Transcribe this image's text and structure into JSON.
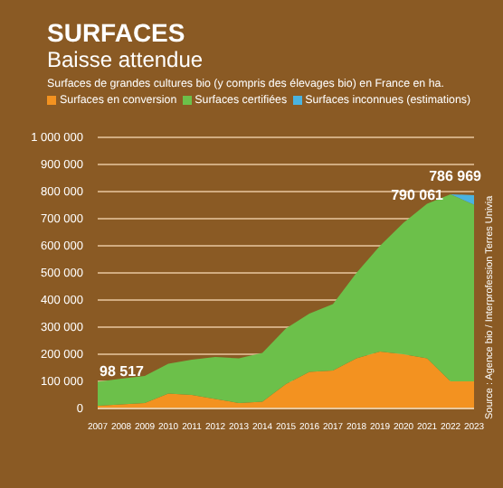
{
  "chart_data": {
    "type": "area",
    "title": "SURFACES",
    "subtitle": "Baisse attendue",
    "annotations": [
      "Surfaces de grandes cultures bio (y compris des élevages bio) en France en ha.",
      {
        "text": "98 517",
        "x": "2007",
        "y": 98517
      },
      {
        "text": "790 061",
        "x": "2022",
        "y": 790061
      },
      {
        "text": "786 969",
        "x": "2023",
        "y": 786969
      },
      "Source : Agence bio / Interprofession Terres Univia"
    ],
    "categories": [
      "2007",
      "2008",
      "2009",
      "2010",
      "2011",
      "2012",
      "2013",
      "2014",
      "2015",
      "2016",
      "2017",
      "2018",
      "2019",
      "2020",
      "2021",
      "2022",
      "2023"
    ],
    "stacked": true,
    "series": [
      {
        "name": "Surfaces en conversion",
        "color": "#f39220",
        "values": [
          10000,
          15000,
          20000,
          55000,
          50000,
          35000,
          20000,
          25000,
          90000,
          135000,
          140000,
          185000,
          210000,
          200000,
          185000,
          100000,
          100000
        ]
      },
      {
        "name": "Surfaces certifiées",
        "color": "#6cc04a",
        "values": [
          88517,
          95000,
          100000,
          110000,
          130000,
          155000,
          165000,
          180000,
          205000,
          215000,
          245000,
          315000,
          390000,
          485000,
          570000,
          690061,
          651969
        ]
      },
      {
        "name": "Surfaces inconnues (estimations)",
        "color": "#4ab3e0",
        "values": [
          0,
          0,
          0,
          0,
          0,
          0,
          0,
          0,
          0,
          0,
          0,
          0,
          0,
          0,
          0,
          0,
          35000
        ]
      }
    ],
    "ylim": [
      0,
      1000000
    ],
    "yticks": [
      0,
      100000,
      200000,
      300000,
      400000,
      500000,
      600000,
      700000,
      800000,
      900000,
      1000000
    ],
    "grid": "y",
    "legend": "top left"
  }
}
